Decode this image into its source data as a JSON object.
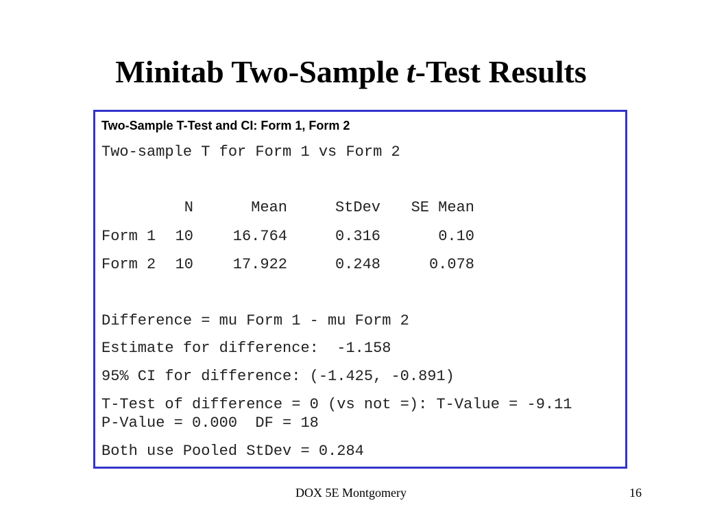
{
  "slide": {
    "title": {
      "before": "Minitab Two-Sample",
      "italic": "t",
      "after": "-Test Results"
    },
    "output": {
      "heading": "Two-Sample T-Test and CI: Form 1, Form 2",
      "intro": "Two-sample T for Form 1 vs Form 2",
      "table": {
        "headers": [
          "N",
          "Mean",
          "StDev",
          "SE Mean"
        ],
        "rows": [
          [
            "Form 1",
            "10",
            "16.764",
            "0.316",
            "0.10"
          ],
          [
            "Form 2",
            "10",
            "17.922",
            "0.248",
            "0.078"
          ]
        ]
      },
      "lines": [
        "Difference = mu Form 1 - mu Form 2",
        "Estimate for difference:  -1.158",
        "95% CI for difference: (-1.425, -0.891)",
        "T-Test of difference = 0 (vs not =): T-Value = -9.11",
        "P-Value = 0.000  DF = 18",
        "Both use Pooled StDev = 0.284"
      ]
    },
    "footer": {
      "center": "DOX 5E Montgomery",
      "page": "16"
    }
  }
}
